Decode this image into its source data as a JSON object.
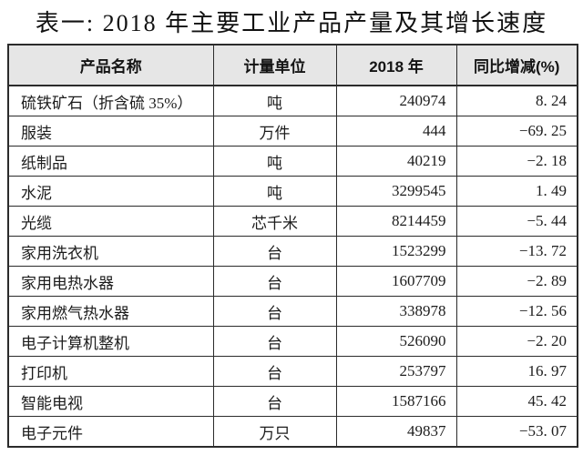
{
  "title": "表一: 2018 年主要工业产品产量及其增长速度",
  "colors": {
    "header_bg": "#e6e6e6",
    "border": "#2b2b2b"
  },
  "table": {
    "headers": [
      "产品名称",
      "计量单位",
      "2018 年",
      "同比增减(%)"
    ],
    "rows": [
      {
        "name": "硫铁矿石（折含硫 35%）",
        "unit": "吨",
        "value": "240974",
        "change": "8. 24"
      },
      {
        "name": "服装",
        "unit": "万件",
        "value": "444",
        "change": "−69. 25"
      },
      {
        "name": "纸制品",
        "unit": "吨",
        "value": "40219",
        "change": "−2. 18"
      },
      {
        "name": "水泥",
        "unit": "吨",
        "value": "3299545",
        "change": "1. 49"
      },
      {
        "name": "光缆",
        "unit": "芯千米",
        "value": "8214459",
        "change": "−5. 44"
      },
      {
        "name": "家用洗衣机",
        "unit": "台",
        "value": "1523299",
        "change": "−13. 72"
      },
      {
        "name": "家用电热水器",
        "unit": "台",
        "value": "1607709",
        "change": "−2. 89"
      },
      {
        "name": "家用燃气热水器",
        "unit": "台",
        "value": "338978",
        "change": "−12. 56"
      },
      {
        "name": "电子计算机整机",
        "unit": "台",
        "value": "526090",
        "change": "−2. 20"
      },
      {
        "name": "打印机",
        "unit": "台",
        "value": "253797",
        "change": "16. 97"
      },
      {
        "name": "智能电视",
        "unit": "台",
        "value": "1587166",
        "change": "45. 42"
      },
      {
        "name": "电子元件",
        "unit": "万只",
        "value": "49837",
        "change": "−53. 07"
      }
    ]
  }
}
